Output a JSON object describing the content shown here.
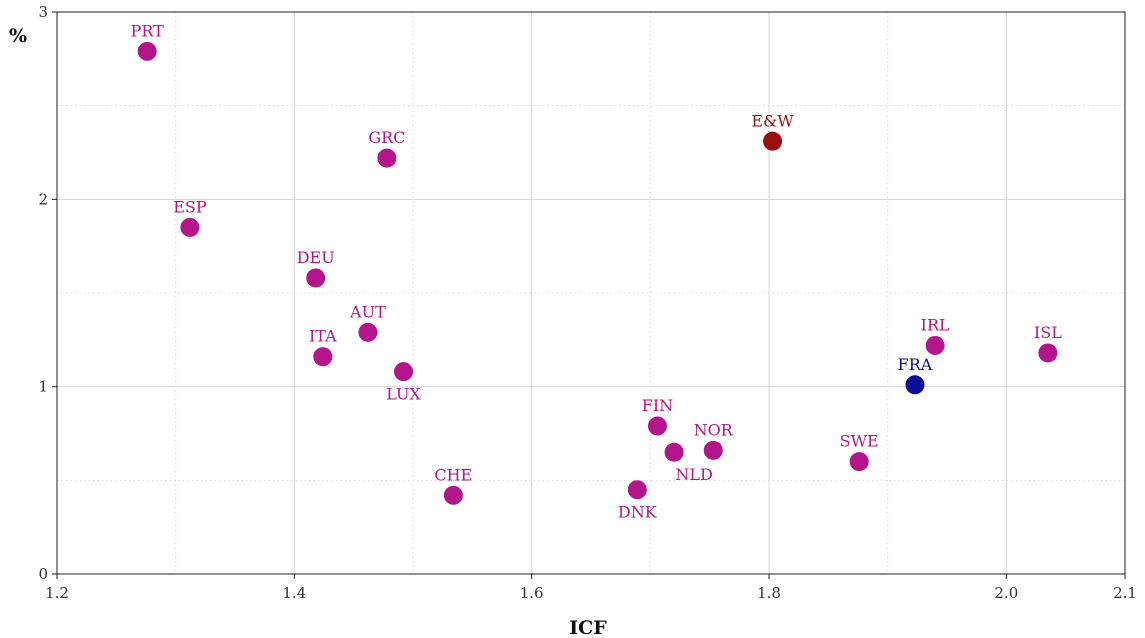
{
  "chart_data": {
    "type": "scatter",
    "title": "",
    "xlabel": "ICF",
    "ylabel": "%",
    "xlim": [
      1.2,
      2.1
    ],
    "ylim": [
      0,
      3
    ],
    "grid": true,
    "x_ticks": [
      1.2,
      1.4,
      1.6,
      1.8,
      2.0,
      2.1
    ],
    "x_tick_labels": [
      "1.2",
      "1.4",
      "1.6",
      "1.8",
      "2.0",
      "2.1"
    ],
    "x_minor_grid": [
      1.3,
      1.5,
      1.7,
      1.9
    ],
    "y_ticks": [
      0,
      1,
      2,
      3
    ],
    "y_tick_labels": [
      "0",
      "1",
      "2",
      "3"
    ],
    "y_minor_grid": [
      0.5,
      1.5,
      2.5
    ],
    "colors": {
      "default": "#b5158a",
      "E&W": "#9b0e0e",
      "FRA": "#0c0c96"
    },
    "points": [
      {
        "label": "PRT",
        "x": 1.276,
        "y": 2.79,
        "label_pos": "above"
      },
      {
        "label": "ESP",
        "x": 1.312,
        "y": 1.85,
        "label_pos": "above"
      },
      {
        "label": "DEU",
        "x": 1.418,
        "y": 1.58,
        "label_pos": "above"
      },
      {
        "label": "GRC",
        "x": 1.478,
        "y": 2.22,
        "label_pos": "above"
      },
      {
        "label": "AUT",
        "x": 1.462,
        "y": 1.29,
        "label_pos": "above"
      },
      {
        "label": "ITA",
        "x": 1.424,
        "y": 1.16,
        "label_pos": "above"
      },
      {
        "label": "LUX",
        "x": 1.492,
        "y": 1.08,
        "label_pos": "below"
      },
      {
        "label": "CHE",
        "x": 1.534,
        "y": 0.42,
        "label_pos": "above"
      },
      {
        "label": "DNK",
        "x": 1.689,
        "y": 0.45,
        "label_pos": "below"
      },
      {
        "label": "FIN",
        "x": 1.706,
        "y": 0.79,
        "label_pos": "above"
      },
      {
        "label": "NLD",
        "x": 1.72,
        "y": 0.65,
        "label_pos": "below-right"
      },
      {
        "label": "NOR",
        "x": 1.753,
        "y": 0.66,
        "label_pos": "above"
      },
      {
        "label": "E&W",
        "x": 1.803,
        "y": 2.31,
        "label_pos": "above"
      },
      {
        "label": "SWE",
        "x": 1.876,
        "y": 0.6,
        "label_pos": "above"
      },
      {
        "label": "FRA",
        "x": 1.923,
        "y": 1.01,
        "label_pos": "above"
      },
      {
        "label": "IRL",
        "x": 1.94,
        "y": 1.22,
        "label_pos": "above"
      },
      {
        "label": "ISL",
        "x": 2.035,
        "y": 1.18,
        "label_pos": "above"
      }
    ]
  }
}
